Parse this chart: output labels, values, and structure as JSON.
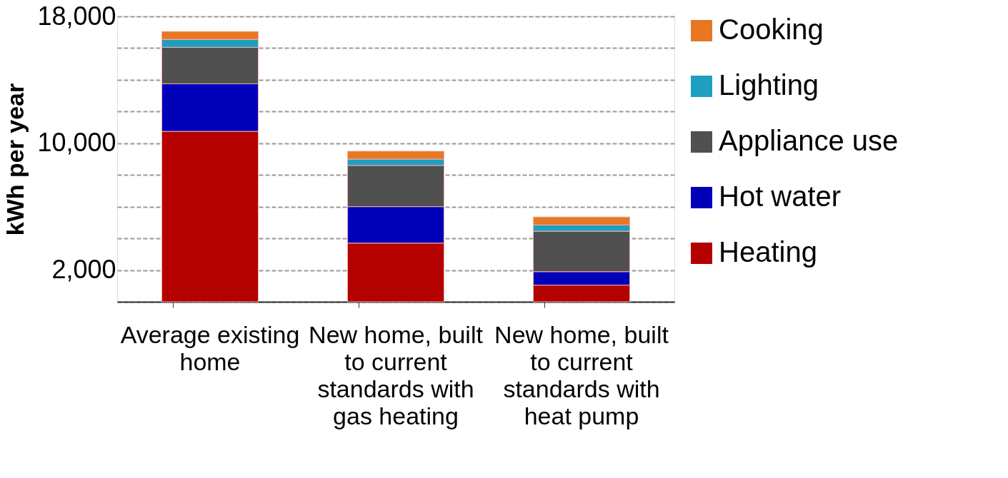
{
  "chart_data": {
    "type": "bar",
    "stacked": true,
    "ylabel": "kWh per year",
    "categories": [
      "Average existing home",
      "New home, built to current standards with gas heating",
      "New home, built to current standards with heat pump"
    ],
    "series": [
      {
        "name": "Heating",
        "color": "#b50000",
        "values": [
          10750,
          3700,
          1050
        ]
      },
      {
        "name": "Hot water",
        "color": "#0000b8",
        "values": [
          3000,
          2300,
          850
        ]
      },
      {
        "name": "Appliance use",
        "color": "#505050",
        "values": [
          2300,
          2600,
          2550
        ]
      },
      {
        "name": "Lighting",
        "color": "#1f9fc0",
        "values": [
          500,
          400,
          400
        ]
      },
      {
        "name": "Cooking",
        "color": "#e87722",
        "values": [
          500,
          500,
          500
        ]
      }
    ],
    "ylim": [
      0,
      18000
    ],
    "yticks": [
      {
        "value": 0,
        "label": null
      },
      {
        "value": 2000,
        "label": "2,000"
      },
      {
        "value": 4000,
        "label": null
      },
      {
        "value": 6000,
        "label": null
      },
      {
        "value": 8000,
        "label": null
      },
      {
        "value": 10000,
        "label": "10,000"
      },
      {
        "value": 12000,
        "label": null
      },
      {
        "value": 14000,
        "label": null
      },
      {
        "value": 16000,
        "label": null
      },
      {
        "value": 18000,
        "label": "18,000"
      }
    ],
    "grid": "y",
    "legend": "right"
  }
}
